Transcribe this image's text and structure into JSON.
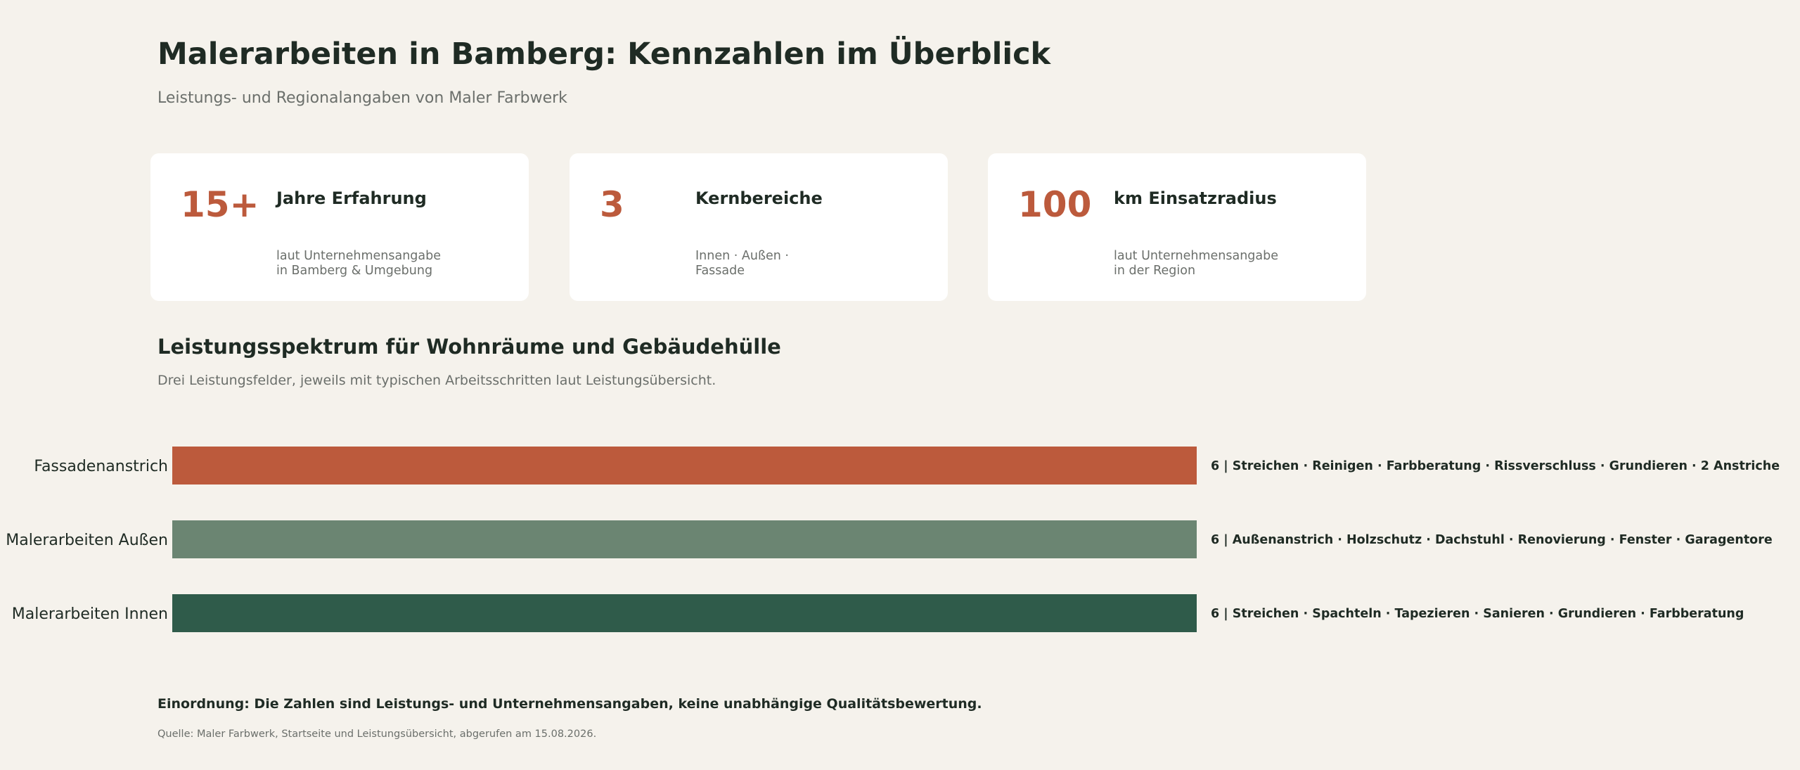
{
  "header": {
    "title": "Malerarbeiten in Bamberg: Kennzahlen im Überblick",
    "subtitle": "Leistungs- und Regionalangaben von Maler Farbwerk"
  },
  "kpis": [
    {
      "value": "15+",
      "label": "Jahre Erfahrung",
      "note_lines": [
        "laut Unternehmensangabe",
        "in Bamberg & Umgebung"
      ]
    },
    {
      "value": "3",
      "label": "Kernbereiche",
      "note_lines": [
        "Innen · Außen ·",
        "Fassade"
      ]
    },
    {
      "value": "100",
      "label": "km Einsatzradius",
      "note_lines": [
        "laut Unternehmensangabe",
        "in der Region"
      ]
    }
  ],
  "section": {
    "title": "Leistungsspektrum für Wohnräume und Gebäudehülle",
    "subtitle": "Drei Leistungsfelder, jeweils mit typischen Arbeitsschritten laut Leistungsübersicht."
  },
  "chart_data": {
    "type": "bar",
    "orientation": "horizontal",
    "categories": [
      "Fassadenanstrich",
      "Malerarbeiten Außen",
      "Malerarbeiten Innen"
    ],
    "values": [
      6,
      6,
      6
    ],
    "annotations": [
      "6  |  Streichen · Reinigen · Farbberatung · Rissverschluss · Grundieren · 2 Anstriche",
      "6  |  Außenanstrich · Holzschutz · Dachstuhl · Renovierung · Fenster · Garagentore",
      "6  |  Streichen · Spachteln · Tapezieren · Sanieren · Grundieren · Farbberatung"
    ],
    "colors": [
      "#bc5a3c",
      "#6b8572",
      "#2f5b4a"
    ],
    "xlim": [
      0,
      6
    ],
    "grid": false,
    "legend": "none"
  },
  "footer": {
    "note": "Einordnung: Die Zahlen sind Leistungs- und Unternehmensangaben, keine unabhängige Qualitätsbewertung.",
    "source": "Quelle: Maler Farbwerk, Startseite und Leistungsübersicht, abgerufen am 15.08.2026."
  }
}
